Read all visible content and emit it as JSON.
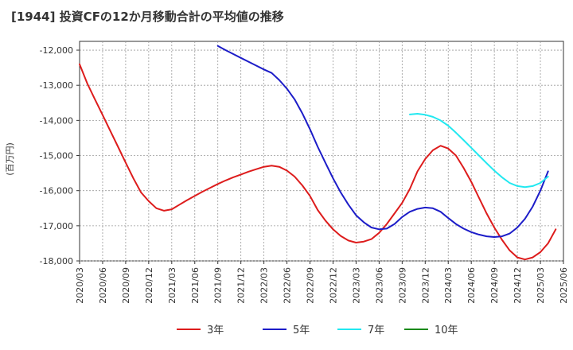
{
  "chart_data": {
    "type": "line",
    "title": "[1944]  投資CFの12か月移動合計の平均値の推移",
    "ylabel": "(百万円)",
    "xlabel": "",
    "ylim": [
      -18000,
      -11750
    ],
    "yticks": [
      -12000,
      -13000,
      -14000,
      -15000,
      -16000,
      -17000,
      -18000
    ],
    "ytick_labels": [
      "-12,000",
      "-13,000",
      "-14,000",
      "-15,000",
      "-16,000",
      "-17,000",
      "-18,000"
    ],
    "xlim": [
      "2020/03",
      "2025/06"
    ],
    "xtick_labels": [
      "2020/03",
      "2020/06",
      "2020/09",
      "2020/12",
      "2021/03",
      "2021/06",
      "2021/09",
      "2021/12",
      "2022/03",
      "2022/06",
      "2022/09",
      "2022/12",
      "2023/03",
      "2023/06",
      "2023/09",
      "2023/12",
      "2024/03",
      "2024/06",
      "2024/09",
      "2024/12",
      "2025/03",
      "2025/06"
    ],
    "grid": true,
    "legend_position": "bottom",
    "series": [
      {
        "name": "3年",
        "color": "#dd1c1c",
        "points": [
          [
            "2020/03",
            -12400
          ],
          [
            "2020/04",
            -12950
          ],
          [
            "2020/05",
            -13400
          ],
          [
            "2020/06",
            -13850
          ],
          [
            "2020/07",
            -14300
          ],
          [
            "2020/08",
            -14750
          ],
          [
            "2020/09",
            -15200
          ],
          [
            "2020/10",
            -15650
          ],
          [
            "2020/11",
            -16050
          ],
          [
            "2020/12",
            -16300
          ],
          [
            "2021/01",
            -16500
          ],
          [
            "2021/02",
            -16570
          ],
          [
            "2021/03",
            -16530
          ],
          [
            "2021/04",
            -16400
          ],
          [
            "2021/05",
            -16270
          ],
          [
            "2021/06",
            -16150
          ],
          [
            "2021/07",
            -16030
          ],
          [
            "2021/08",
            -15920
          ],
          [
            "2021/09",
            -15810
          ],
          [
            "2021/10",
            -15710
          ],
          [
            "2021/11",
            -15620
          ],
          [
            "2021/12",
            -15540
          ],
          [
            "2022/01",
            -15460
          ],
          [
            "2022/02",
            -15390
          ],
          [
            "2022/03",
            -15320
          ],
          [
            "2022/04",
            -15290
          ],
          [
            "2022/05",
            -15320
          ],
          [
            "2022/06",
            -15430
          ],
          [
            "2022/07",
            -15600
          ],
          [
            "2022/08",
            -15850
          ],
          [
            "2022/09",
            -16150
          ],
          [
            "2022/10",
            -16550
          ],
          [
            "2022/11",
            -16850
          ],
          [
            "2022/12",
            -17100
          ],
          [
            "2023/01",
            -17290
          ],
          [
            "2023/02",
            -17420
          ],
          [
            "2023/03",
            -17480
          ],
          [
            "2023/04",
            -17450
          ],
          [
            "2023/05",
            -17380
          ],
          [
            "2023/06",
            -17200
          ],
          [
            "2023/07",
            -16950
          ],
          [
            "2023/08",
            -16650
          ],
          [
            "2023/09",
            -16350
          ],
          [
            "2023/10",
            -15950
          ],
          [
            "2023/11",
            -15450
          ],
          [
            "2023/12",
            -15100
          ],
          [
            "2024/01",
            -14850
          ],
          [
            "2024/02",
            -14720
          ],
          [
            "2024/03",
            -14800
          ],
          [
            "2024/04",
            -15000
          ],
          [
            "2024/05",
            -15350
          ],
          [
            "2024/06",
            -15750
          ],
          [
            "2024/07",
            -16200
          ],
          [
            "2024/08",
            -16650
          ],
          [
            "2024/09",
            -17050
          ],
          [
            "2024/10",
            -17400
          ],
          [
            "2024/11",
            -17700
          ],
          [
            "2024/12",
            -17900
          ],
          [
            "2025/01",
            -17960
          ],
          [
            "2025/02",
            -17900
          ],
          [
            "2025/03",
            -17750
          ],
          [
            "2025/04",
            -17500
          ],
          [
            "2025/05",
            -17100
          ]
        ]
      },
      {
        "name": "5年",
        "color": "#1c1cc8",
        "points": [
          [
            "2021/09",
            -11880
          ],
          [
            "2021/10",
            -12000
          ],
          [
            "2021/11",
            -12110
          ],
          [
            "2021/12",
            -12220
          ],
          [
            "2022/01",
            -12330
          ],
          [
            "2022/02",
            -12440
          ],
          [
            "2022/03",
            -12550
          ],
          [
            "2022/04",
            -12650
          ],
          [
            "2022/05",
            -12850
          ],
          [
            "2022/06",
            -13100
          ],
          [
            "2022/07",
            -13400
          ],
          [
            "2022/08",
            -13800
          ],
          [
            "2022/09",
            -14250
          ],
          [
            "2022/10",
            -14750
          ],
          [
            "2022/11",
            -15200
          ],
          [
            "2022/12",
            -15650
          ],
          [
            "2023/01",
            -16050
          ],
          [
            "2023/02",
            -16400
          ],
          [
            "2023/03",
            -16700
          ],
          [
            "2023/04",
            -16900
          ],
          [
            "2023/05",
            -17050
          ],
          [
            "2023/06",
            -17100
          ],
          [
            "2023/07",
            -17080
          ],
          [
            "2023/08",
            -16950
          ],
          [
            "2023/09",
            -16750
          ],
          [
            "2023/10",
            -16600
          ],
          [
            "2023/11",
            -16520
          ],
          [
            "2023/12",
            -16480
          ],
          [
            "2024/01",
            -16500
          ],
          [
            "2024/02",
            -16600
          ],
          [
            "2024/03",
            -16780
          ],
          [
            "2024/04",
            -16950
          ],
          [
            "2024/05",
            -17080
          ],
          [
            "2024/06",
            -17180
          ],
          [
            "2024/07",
            -17250
          ],
          [
            "2024/08",
            -17300
          ],
          [
            "2024/09",
            -17320
          ],
          [
            "2024/10",
            -17300
          ],
          [
            "2024/11",
            -17220
          ],
          [
            "2024/12",
            -17050
          ],
          [
            "2025/01",
            -16800
          ],
          [
            "2025/02",
            -16450
          ],
          [
            "2025/03",
            -16000
          ],
          [
            "2025/04",
            -15450
          ]
        ]
      },
      {
        "name": "7年",
        "color": "#22e8f0",
        "points": [
          [
            "2023/10",
            -13830
          ],
          [
            "2023/11",
            -13810
          ],
          [
            "2023/12",
            -13840
          ],
          [
            "2024/01",
            -13900
          ],
          [
            "2024/02",
            -14000
          ],
          [
            "2024/03",
            -14150
          ],
          [
            "2024/04",
            -14350
          ],
          [
            "2024/05",
            -14560
          ],
          [
            "2024/06",
            -14780
          ],
          [
            "2024/07",
            -15000
          ],
          [
            "2024/08",
            -15220
          ],
          [
            "2024/09",
            -15430
          ],
          [
            "2024/10",
            -15620
          ],
          [
            "2024/11",
            -15780
          ],
          [
            "2024/12",
            -15870
          ],
          [
            "2025/01",
            -15900
          ],
          [
            "2025/02",
            -15870
          ],
          [
            "2025/03",
            -15780
          ],
          [
            "2025/04",
            -15600
          ]
        ]
      },
      {
        "name": "10年",
        "color": "#1a8a1a",
        "points": []
      }
    ]
  }
}
